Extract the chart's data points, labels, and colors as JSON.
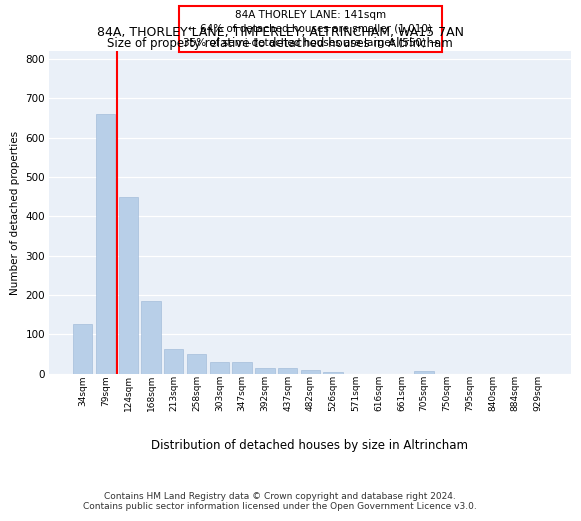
{
  "title_line1": "84A, THORLEY LANE, TIMPERLEY, ALTRINCHAM, WA15 7AN",
  "title_line2": "Size of property relative to detached houses in Altrincham",
  "xlabel": "Distribution of detached houses by size in Altrincham",
  "ylabel": "Number of detached properties",
  "categories": [
    "34sqm",
    "79sqm",
    "124sqm",
    "168sqm",
    "213sqm",
    "258sqm",
    "303sqm",
    "347sqm",
    "392sqm",
    "437sqm",
    "482sqm",
    "526sqm",
    "571sqm",
    "616sqm",
    "661sqm",
    "705sqm",
    "750sqm",
    "795sqm",
    "840sqm",
    "884sqm",
    "929sqm"
  ],
  "values": [
    125,
    660,
    450,
    185,
    62,
    50,
    28,
    28,
    13,
    15,
    10,
    5,
    0,
    0,
    0,
    7,
    0,
    0,
    0,
    0,
    0
  ],
  "bar_color": "#b8cfe8",
  "bar_edgecolor": "#9ab5d5",
  "vline_color": "red",
  "vline_pos": 1.5,
  "annotation_text": "84A THORLEY LANE: 141sqm\n← 64% of detached houses are smaller (1,010)\n35% of semi-detached houses are larger (550) →",
  "annotation_box_color": "white",
  "annotation_box_edgecolor": "red",
  "ylim": [
    0,
    820
  ],
  "yticks": [
    0,
    100,
    200,
    300,
    400,
    500,
    600,
    700,
    800
  ],
  "plot_background": "#eaf0f8",
  "grid_color": "white",
  "footer": "Contains HM Land Registry data © Crown copyright and database right 2024.\nContains public sector information licensed under the Open Government Licence v3.0."
}
